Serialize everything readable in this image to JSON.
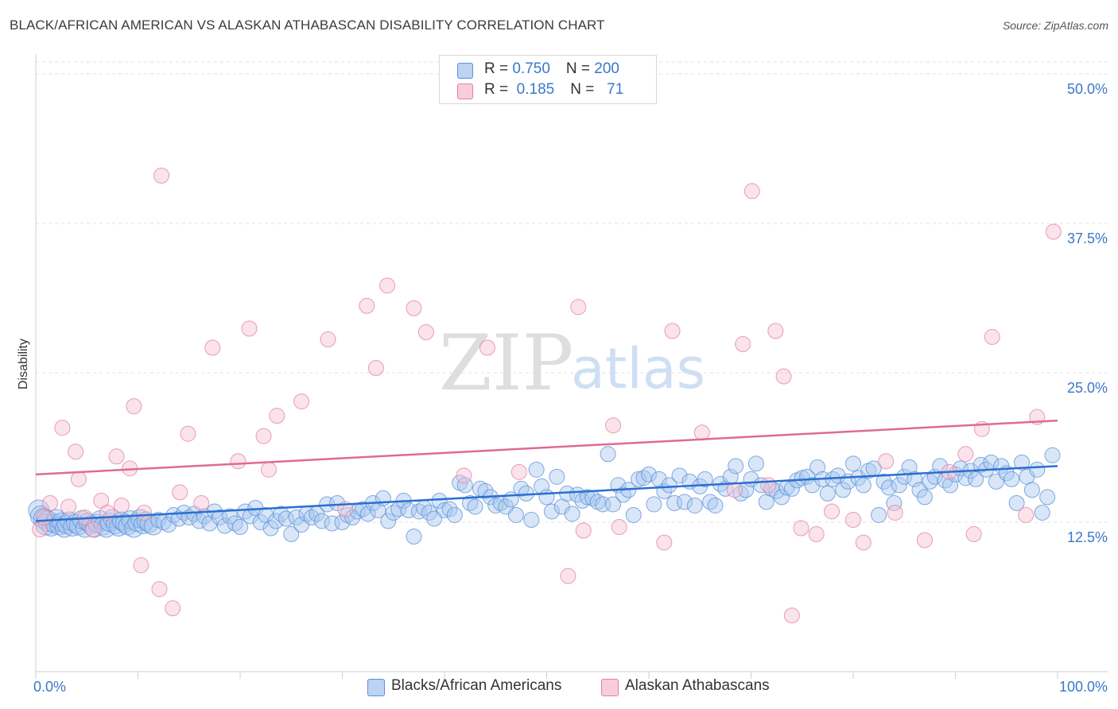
{
  "chart_data": {
    "type": "scatter",
    "title": "BLACK/AFRICAN AMERICAN VS ALASKAN ATHABASCAN DISABILITY CORRELATION CHART",
    "source": "Source: ZipAtlas.com",
    "ylabel": "Disability",
    "xlabel": "",
    "xlim": [
      0,
      100
    ],
    "ylim": [
      0,
      51
    ],
    "x_tick_labels": [
      "0.0%",
      "100.0%"
    ],
    "y_ticks": [
      {
        "value": 12.5,
        "label": "12.5%"
      },
      {
        "value": 25.0,
        "label": "25.0%"
      },
      {
        "value": 37.5,
        "label": "37.5%"
      },
      {
        "value": 50.0,
        "label": "50.0%"
      }
    ],
    "watermark": {
      "part1": "ZIP",
      "part2": "atlas"
    },
    "legend_stats": [
      {
        "r_label": "R = ",
        "r_value": "0.750",
        "n_label": "N = ",
        "n_value": "200"
      },
      {
        "r_label": "R = ",
        "r_value": " 0.185",
        "n_label": "N = ",
        "n_value": "  71"
      }
    ],
    "series": [
      {
        "name": "Blacks/African Americans",
        "fill": "#a9c8f0",
        "stroke": "#5b8fd6",
        "line_color": "#2a6fd0",
        "trend": {
          "x": [
            0,
            100
          ],
          "y": [
            12.6,
            17.2
          ]
        },
        "points": [
          [
            0.3,
            13.5
          ],
          [
            0.5,
            13.0
          ],
          [
            0.8,
            12.8
          ],
          [
            1.0,
            12.3
          ],
          [
            1.2,
            12.6
          ],
          [
            1.5,
            12.1
          ],
          [
            1.8,
            12.4
          ],
          [
            2.0,
            12.8
          ],
          [
            2.3,
            12.2
          ],
          [
            2.5,
            12.5
          ],
          [
            2.8,
            12.0
          ],
          [
            3.0,
            12.3
          ],
          [
            3.3,
            12.6
          ],
          [
            3.6,
            12.1
          ],
          [
            3.9,
            12.4
          ],
          [
            4.2,
            12.2
          ],
          [
            4.5,
            12.7
          ],
          [
            4.8,
            12.0
          ],
          [
            5.1,
            12.5
          ],
          [
            5.4,
            12.3
          ],
          [
            5.7,
            12.0
          ],
          [
            6.0,
            12.4
          ],
          [
            6.3,
            12.7
          ],
          [
            6.6,
            12.2
          ],
          [
            6.9,
            12.0
          ],
          [
            7.2,
            12.5
          ],
          [
            7.5,
            12.8
          ],
          [
            7.8,
            12.3
          ],
          [
            8.1,
            12.1
          ],
          [
            8.4,
            12.6
          ],
          [
            8.7,
            12.4
          ],
          [
            9.0,
            12.2
          ],
          [
            9.3,
            12.7
          ],
          [
            9.6,
            12.0
          ],
          [
            9.9,
            12.5
          ],
          [
            10.2,
            12.8
          ],
          [
            10.5,
            12.3
          ],
          [
            10.8,
            12.6
          ],
          [
            11.1,
            12.4
          ],
          [
            11.5,
            12.2
          ],
          [
            12.0,
            12.7
          ],
          [
            12.5,
            12.5
          ],
          [
            13.0,
            12.3
          ],
          [
            13.5,
            13.1
          ],
          [
            14.0,
            12.8
          ],
          [
            14.5,
            13.3
          ],
          [
            15.0,
            12.9
          ],
          [
            15.5,
            13.2
          ],
          [
            16.0,
            12.6
          ],
          [
            16.5,
            13.0
          ],
          [
            17.0,
            12.4
          ],
          [
            17.5,
            13.4
          ],
          [
            18.0,
            12.9
          ],
          [
            18.5,
            12.2
          ],
          [
            19.0,
            13.0
          ],
          [
            19.5,
            12.4
          ],
          [
            20.0,
            12.1
          ],
          [
            20.5,
            13.4
          ],
          [
            21.0,
            13.0
          ],
          [
            21.5,
            13.7
          ],
          [
            22.0,
            12.5
          ],
          [
            22.5,
            13.1
          ],
          [
            23.0,
            12.0
          ],
          [
            23.5,
            12.6
          ],
          [
            24.0,
            13.2
          ],
          [
            24.5,
            12.8
          ],
          [
            25.0,
            11.5
          ],
          [
            25.5,
            12.9
          ],
          [
            26.0,
            12.3
          ],
          [
            26.5,
            13.2
          ],
          [
            27.0,
            12.9
          ],
          [
            27.5,
            13.2
          ],
          [
            28.0,
            12.6
          ],
          [
            28.5,
            14.0
          ],
          [
            29.0,
            12.4
          ],
          [
            29.5,
            14.1
          ],
          [
            30.0,
            12.5
          ],
          [
            30.5,
            13.1
          ],
          [
            31.0,
            12.9
          ],
          [
            31.5,
            13.4
          ],
          [
            32.0,
            13.6
          ],
          [
            32.5,
            13.2
          ],
          [
            33.0,
            14.1
          ],
          [
            33.5,
            13.5
          ],
          [
            34.0,
            14.5
          ],
          [
            34.5,
            12.6
          ],
          [
            35.0,
            13.3
          ],
          [
            35.5,
            13.6
          ],
          [
            36.0,
            14.3
          ],
          [
            36.5,
            13.5
          ],
          [
            37.0,
            11.3
          ],
          [
            37.5,
            13.4
          ],
          [
            38.0,
            13.7
          ],
          [
            38.5,
            13.3
          ],
          [
            39.0,
            12.8
          ],
          [
            39.5,
            14.3
          ],
          [
            40.0,
            13.5
          ],
          [
            40.5,
            13.6
          ],
          [
            41.0,
            13.1
          ],
          [
            41.5,
            15.8
          ],
          [
            42.0,
            15.6
          ],
          [
            42.5,
            14.1
          ],
          [
            43.0,
            13.8
          ],
          [
            43.5,
            15.3
          ],
          [
            44.0,
            15.1
          ],
          [
            44.5,
            14.6
          ],
          [
            45.0,
            13.9
          ],
          [
            45.5,
            14.1
          ],
          [
            46.0,
            13.8
          ],
          [
            46.5,
            14.4
          ],
          [
            47.0,
            13.1
          ],
          [
            47.5,
            15.3
          ],
          [
            48.0,
            14.9
          ],
          [
            48.5,
            12.7
          ],
          [
            49.0,
            16.9
          ],
          [
            49.5,
            15.5
          ],
          [
            50.0,
            14.6
          ],
          [
            50.5,
            13.4
          ],
          [
            51.0,
            16.3
          ],
          [
            51.5,
            13.8
          ],
          [
            52.0,
            14.9
          ],
          [
            52.5,
            13.2
          ],
          [
            53.0,
            14.8
          ],
          [
            53.5,
            14.3
          ],
          [
            54.0,
            14.6
          ],
          [
            54.5,
            14.5
          ],
          [
            55.0,
            14.2
          ],
          [
            55.5,
            14.0
          ],
          [
            56.0,
            18.2
          ],
          [
            56.5,
            14.0
          ],
          [
            57.0,
            15.6
          ],
          [
            57.5,
            14.8
          ],
          [
            58.0,
            15.2
          ],
          [
            58.5,
            13.1
          ],
          [
            59.0,
            16.1
          ],
          [
            59.5,
            16.2
          ],
          [
            60.0,
            16.5
          ],
          [
            60.5,
            14.0
          ],
          [
            61.0,
            16.1
          ],
          [
            61.5,
            15.1
          ],
          [
            62.0,
            15.6
          ],
          [
            62.5,
            14.1
          ],
          [
            63.0,
            16.4
          ],
          [
            63.5,
            14.2
          ],
          [
            64.0,
            15.9
          ],
          [
            64.5,
            13.9
          ],
          [
            65.0,
            15.5
          ],
          [
            65.5,
            16.1
          ],
          [
            66.0,
            14.2
          ],
          [
            66.5,
            13.9
          ],
          [
            67.0,
            15.7
          ],
          [
            67.5,
            15.3
          ],
          [
            68.0,
            16.3
          ],
          [
            68.5,
            17.2
          ],
          [
            69.0,
            14.9
          ],
          [
            69.5,
            15.2
          ],
          [
            70.0,
            16.1
          ],
          [
            70.5,
            17.4
          ],
          [
            71.0,
            15.6
          ],
          [
            71.5,
            14.2
          ],
          [
            72.0,
            15.3
          ],
          [
            72.5,
            15.1
          ],
          [
            73.0,
            14.6
          ],
          [
            73.5,
            15.4
          ],
          [
            74.0,
            15.3
          ],
          [
            74.5,
            16.0
          ],
          [
            75.0,
            16.2
          ],
          [
            75.5,
            16.3
          ],
          [
            76.0,
            15.6
          ],
          [
            76.5,
            17.1
          ],
          [
            77.0,
            16.1
          ],
          [
            77.5,
            14.9
          ],
          [
            78.0,
            16.1
          ],
          [
            78.5,
            16.4
          ],
          [
            79.0,
            15.2
          ],
          [
            79.5,
            15.9
          ],
          [
            80.0,
            17.4
          ],
          [
            80.5,
            16.2
          ],
          [
            81.0,
            15.6
          ],
          [
            81.5,
            16.8
          ],
          [
            82.0,
            17.0
          ],
          [
            82.5,
            13.1
          ],
          [
            83.0,
            15.9
          ],
          [
            83.5,
            15.4
          ],
          [
            84.0,
            14.1
          ],
          [
            84.5,
            15.6
          ],
          [
            85.0,
            16.3
          ],
          [
            85.5,
            17.1
          ],
          [
            86.0,
            16.1
          ],
          [
            86.5,
            15.2
          ],
          [
            87.0,
            14.6
          ],
          [
            87.5,
            15.9
          ],
          [
            88.0,
            16.3
          ],
          [
            88.5,
            17.2
          ],
          [
            89.0,
            16.0
          ],
          [
            89.5,
            15.6
          ],
          [
            90.0,
            16.5
          ],
          [
            90.5,
            17.0
          ],
          [
            91.0,
            16.2
          ],
          [
            91.5,
            16.8
          ],
          [
            92.0,
            16.1
          ],
          [
            92.5,
            17.3
          ],
          [
            93.0,
            16.9
          ],
          [
            93.5,
            17.5
          ],
          [
            94.0,
            15.9
          ],
          [
            94.5,
            17.2
          ],
          [
            95.0,
            16.6
          ],
          [
            95.5,
            16.1
          ],
          [
            96.0,
            14.1
          ],
          [
            96.5,
            17.5
          ],
          [
            97.0,
            16.3
          ],
          [
            97.5,
            15.2
          ],
          [
            98.0,
            16.9
          ],
          [
            98.5,
            13.3
          ],
          [
            99.0,
            14.6
          ],
          [
            99.5,
            18.1
          ]
        ]
      },
      {
        "name": "Alaskan Athabascans",
        "fill": "#f5c0d2",
        "stroke": "#e27fa0",
        "line_color": "#e06a93",
        "trend": {
          "x": [
            0,
            100
          ],
          "y": [
            16.5,
            21.0
          ]
        },
        "points": [
          [
            0.4,
            11.9
          ],
          [
            0.8,
            12.9
          ],
          [
            1.4,
            14.1
          ],
          [
            2.6,
            20.4
          ],
          [
            3.2,
            13.8
          ],
          [
            3.9,
            18.4
          ],
          [
            4.2,
            16.1
          ],
          [
            4.8,
            12.9
          ],
          [
            5.6,
            11.9
          ],
          [
            6.4,
            14.3
          ],
          [
            7.0,
            13.3
          ],
          [
            7.9,
            18.0
          ],
          [
            8.4,
            13.9
          ],
          [
            9.2,
            17.0
          ],
          [
            9.6,
            22.2
          ],
          [
            10.3,
            8.9
          ],
          [
            10.6,
            13.3
          ],
          [
            12.1,
            6.9
          ],
          [
            12.3,
            41.5
          ],
          [
            13.4,
            5.3
          ],
          [
            14.1,
            15.0
          ],
          [
            14.9,
            19.9
          ],
          [
            16.2,
            14.1
          ],
          [
            17.3,
            27.1
          ],
          [
            19.8,
            17.6
          ],
          [
            20.9,
            28.7
          ],
          [
            22.3,
            19.7
          ],
          [
            22.8,
            16.9
          ],
          [
            23.6,
            21.4
          ],
          [
            26.0,
            22.6
          ],
          [
            28.6,
            27.8
          ],
          [
            30.3,
            13.6
          ],
          [
            32.4,
            30.6
          ],
          [
            33.3,
            25.4
          ],
          [
            34.4,
            32.3
          ],
          [
            37.0,
            30.4
          ],
          [
            38.2,
            28.4
          ],
          [
            41.9,
            16.4
          ],
          [
            44.2,
            27.1
          ],
          [
            47.3,
            16.7
          ],
          [
            52.1,
            8.0
          ],
          [
            53.1,
            30.5
          ],
          [
            53.6,
            11.8
          ],
          [
            56.5,
            20.6
          ],
          [
            57.1,
            12.1
          ],
          [
            61.5,
            10.8
          ],
          [
            62.3,
            28.5
          ],
          [
            65.2,
            20.0
          ],
          [
            68.4,
            15.2
          ],
          [
            69.2,
            27.4
          ],
          [
            70.1,
            40.2
          ],
          [
            71.7,
            15.6
          ],
          [
            72.4,
            28.5
          ],
          [
            73.2,
            24.7
          ],
          [
            74.0,
            4.7
          ],
          [
            74.9,
            12.0
          ],
          [
            76.4,
            11.5
          ],
          [
            77.9,
            13.4
          ],
          [
            80.0,
            12.7
          ],
          [
            81.0,
            10.8
          ],
          [
            83.2,
            17.6
          ],
          [
            84.1,
            13.3
          ],
          [
            87.0,
            11.0
          ],
          [
            89.4,
            16.7
          ],
          [
            91.0,
            18.2
          ],
          [
            91.8,
            11.5
          ],
          [
            92.6,
            20.3
          ],
          [
            93.6,
            28.0
          ],
          [
            96.9,
            13.1
          ],
          [
            98.0,
            21.3
          ],
          [
            99.6,
            36.8
          ]
        ]
      }
    ]
  }
}
